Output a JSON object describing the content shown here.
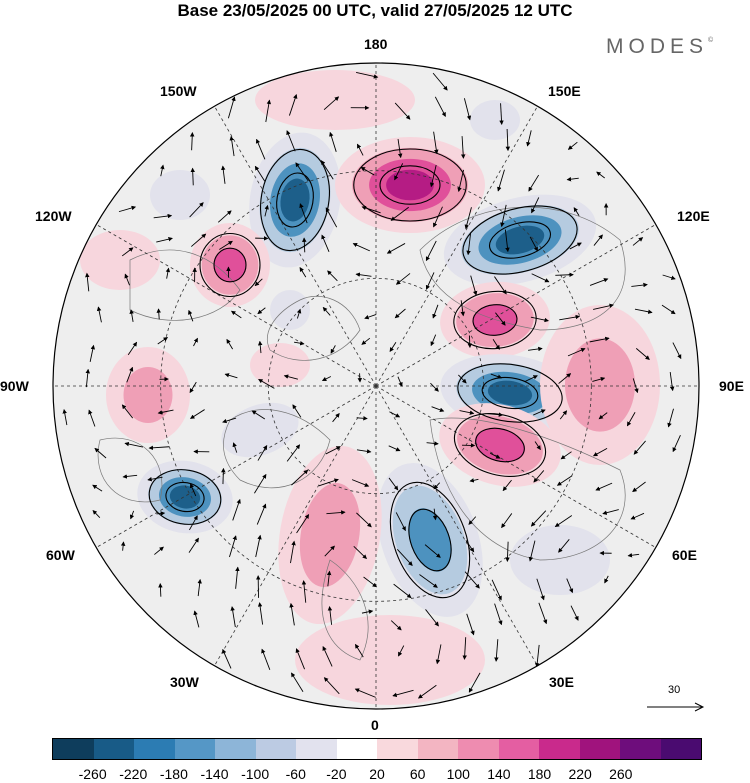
{
  "title": "Base 23/05/2025 00 UTC, valid 27/05/2025 12 UTC",
  "brand": "MODES",
  "brand_mark": "©",
  "map": {
    "projection": "north-polar-stereographic",
    "longitude_labels": {
      "top": "180",
      "top_right": "150E",
      "upper_right": "120E",
      "right": "90E",
      "lower_right": "60E",
      "bottom_right": "30E",
      "bottom": "0",
      "bottom_left": "30W",
      "lower_left": "60W",
      "left": "90W",
      "upper_left": "120W",
      "top_left": "150W"
    },
    "reference_vector": "30",
    "field_colors": {
      "neg_strong": "#1d5f8a",
      "neg_mid": "#4d92bf",
      "neg_weak": "#b5cbe0",
      "neg_faint": "#e2e2ec",
      "pos_faint": "#f7d6dd",
      "pos_weak": "#ef9fb6",
      "pos_mid": "#e0509a",
      "pos_strong": "#b51c84"
    }
  },
  "colorbar": {
    "colors": [
      "#0e3d5c",
      "#185b87",
      "#2c7cb3",
      "#5597c6",
      "#8db5d8",
      "#bccbe3",
      "#e2e2ee",
      "#ffffff",
      "#f9d9dd",
      "#f3b5c2",
      "#ee8cb0",
      "#e45ea2",
      "#c92a8c",
      "#a0137d",
      "#6e0d7c",
      "#4a0b70"
    ],
    "tick_labels": [
      "-260",
      "-220",
      "-180",
      "-140",
      "-100",
      "-60",
      "-20",
      "20",
      "60",
      "100",
      "140",
      "180",
      "220",
      "260"
    ]
  }
}
